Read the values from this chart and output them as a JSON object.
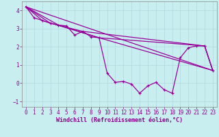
{
  "xlabel": "Windchill (Refroidissement éolien,°C)",
  "background_color": "#c8eef0",
  "grid_color": "#b0d8dc",
  "line_color": "#990099",
  "series": [
    [
      0,
      4.2
    ],
    [
      1,
      3.6
    ],
    [
      2,
      3.45
    ],
    [
      3,
      3.3
    ],
    [
      4,
      3.2
    ],
    [
      5,
      3.15
    ],
    [
      6,
      2.65
    ],
    [
      7,
      2.85
    ],
    [
      8,
      2.55
    ],
    [
      9,
      2.5
    ],
    [
      10,
      0.55
    ],
    [
      11,
      0.05
    ],
    [
      12,
      0.1
    ],
    [
      13,
      -0.05
    ],
    [
      14,
      -0.55
    ],
    [
      15,
      -0.15
    ],
    [
      16,
      0.05
    ],
    [
      17,
      -0.35
    ],
    [
      18,
      -0.55
    ],
    [
      19,
      1.4
    ],
    [
      20,
      1.95
    ],
    [
      21,
      2.05
    ],
    [
      22,
      2.05
    ],
    [
      23,
      0.7
    ]
  ],
  "trend_lines": [
    [
      [
        0,
        4.2
      ],
      [
        23,
        0.7
      ]
    ],
    [
      [
        0,
        4.2
      ],
      [
        2,
        3.45
      ],
      [
        9,
        2.5
      ],
      [
        23,
        0.7
      ]
    ],
    [
      [
        0,
        4.2
      ],
      [
        4,
        3.2
      ],
      [
        9,
        2.5
      ],
      [
        22,
        2.05
      ],
      [
        23,
        0.7
      ]
    ],
    [
      [
        0,
        4.2
      ],
      [
        3,
        3.3
      ],
      [
        7,
        2.85
      ],
      [
        22,
        2.05
      ],
      [
        23,
        0.7
      ]
    ]
  ],
  "xlim": [
    0,
    23
  ],
  "ylim": [
    -1.3,
    4.5
  ],
  "yticks": [
    -1,
    0,
    1,
    2,
    3,
    4
  ],
  "xticks": [
    0,
    1,
    2,
    3,
    4,
    5,
    6,
    7,
    8,
    9,
    10,
    11,
    12,
    13,
    14,
    15,
    16,
    17,
    18,
    19,
    20,
    21,
    22,
    23
  ],
  "tick_color": "#880088",
  "label_color": "#880088",
  "spine_color": "#888888",
  "tick_fontsize": 5.5,
  "xlabel_fontsize": 6.0,
  "linewidth": 0.9,
  "marker_size": 3.5
}
